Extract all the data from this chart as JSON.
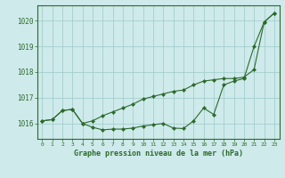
{
  "x": [
    0,
    1,
    2,
    3,
    4,
    5,
    6,
    7,
    8,
    9,
    10,
    11,
    12,
    13,
    14,
    15,
    16,
    17,
    18,
    19,
    20,
    21,
    22,
    23
  ],
  "line1": [
    1016.1,
    1016.15,
    1016.5,
    1016.55,
    1016.0,
    1015.85,
    1015.75,
    1015.78,
    1015.78,
    1015.82,
    1015.9,
    1015.95,
    1016.0,
    1015.82,
    1015.8,
    1016.1,
    1016.6,
    1016.35,
    1017.5,
    1017.65,
    1017.75,
    1019.0,
    1019.95,
    1020.3
  ],
  "line2": [
    1016.1,
    1016.15,
    1016.5,
    1016.55,
    1016.0,
    1016.1,
    1016.3,
    1016.45,
    1016.6,
    1016.75,
    1016.95,
    1017.05,
    1017.15,
    1017.25,
    1017.3,
    1017.5,
    1017.65,
    1017.7,
    1017.75,
    1017.75,
    1017.8,
    1018.1,
    1019.95,
    1020.3
  ],
  "ylim": [
    1015.4,
    1020.6
  ],
  "yticks": [
    1016,
    1017,
    1018,
    1019,
    1020
  ],
  "xticks": [
    0,
    1,
    2,
    3,
    4,
    5,
    6,
    7,
    8,
    9,
    10,
    11,
    12,
    13,
    14,
    15,
    16,
    17,
    18,
    19,
    20,
    21,
    22,
    23
  ],
  "line_color": "#2d6a2d",
  "bg_color": "#ceeaea",
  "grid_color": "#9ec8c8",
  "xlabel": "Graphe pression niveau de la mer (hPa)",
  "marker": "D",
  "marker_size": 2.0,
  "linewidth": 0.8
}
